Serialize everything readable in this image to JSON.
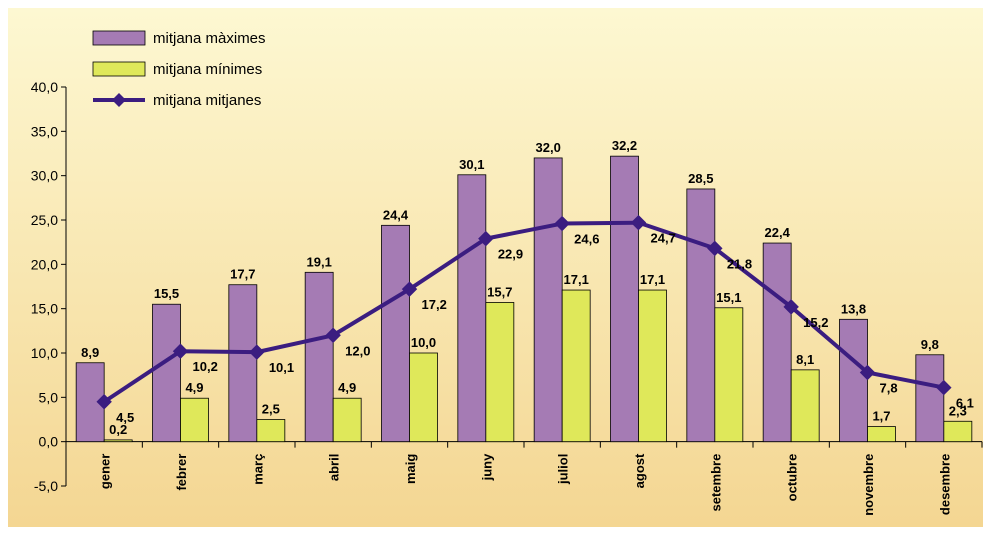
{
  "chart_data": {
    "type": "bar",
    "categories": [
      "gener",
      "febrer",
      "març",
      "abril",
      "maig",
      "juny",
      "juliol",
      "agost",
      "setembre",
      "octubre",
      "novembre",
      "desembre"
    ],
    "ylim": [
      -5,
      40
    ],
    "y_ticks": [
      "-5,0",
      "0,0",
      "5,0",
      "10,0",
      "15,0",
      "20,0",
      "25,0",
      "30,0",
      "35,0",
      "40,0"
    ],
    "grid": false,
    "legend_position": "top-left",
    "series": [
      {
        "name": "mitjana màximes",
        "type": "bar",
        "color": "#a57bb4",
        "values": [
          8.9,
          15.5,
          17.7,
          19.1,
          24.4,
          30.1,
          32.0,
          32.2,
          28.5,
          22.4,
          13.8,
          9.8
        ],
        "labels": [
          "8,9",
          "15,5",
          "17,7",
          "19,1",
          "24,4",
          "30,1",
          "32,0",
          "32,2",
          "28,5",
          "22,4",
          "13,8",
          "9,8"
        ]
      },
      {
        "name": "mitjana mínimes",
        "type": "bar",
        "color": "#dfe85a",
        "values": [
          0.2,
          4.9,
          2.5,
          4.9,
          10.0,
          15.7,
          17.1,
          17.1,
          15.1,
          8.1,
          1.7,
          2.3
        ],
        "labels": [
          "0,2",
          "4,9",
          "2,5",
          "4,9",
          "10,0",
          "15,7",
          "17,1",
          "17,1",
          "15,1",
          "8,1",
          "1,7",
          "2,3"
        ]
      },
      {
        "name": "mitjana mitjanes",
        "type": "line",
        "color": "#3b1d80",
        "values": [
          4.5,
          10.2,
          10.1,
          12.0,
          17.2,
          22.9,
          24.6,
          24.7,
          21.8,
          15.2,
          7.8,
          6.1
        ],
        "labels": [
          "4,5",
          "10,2",
          "10,1",
          "12,0",
          "17,2",
          "22,9",
          "24,6",
          "24,7",
          "21,8",
          "15,2",
          "7,8",
          "6,1"
        ]
      }
    ]
  },
  "colors": {
    "background_top": "#fdf8d2",
    "background_bottom": "#f4d692",
    "axis": "#000000"
  }
}
